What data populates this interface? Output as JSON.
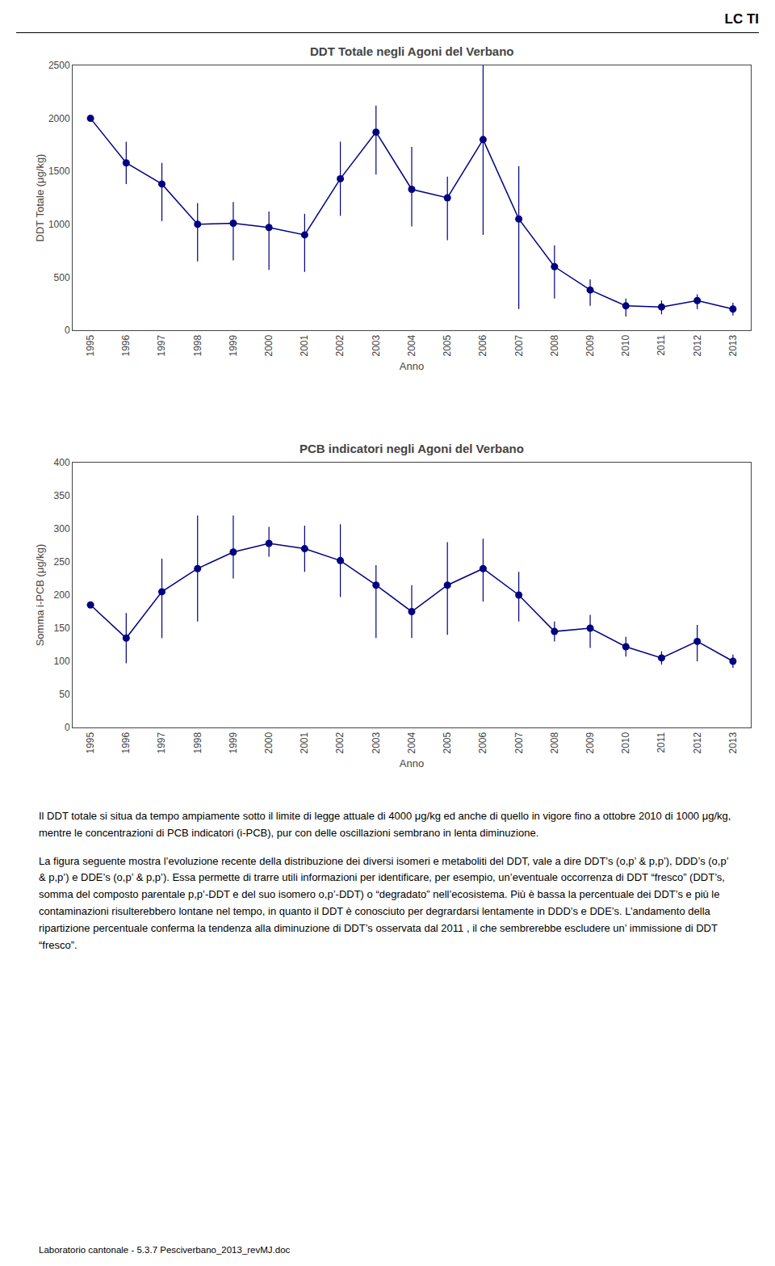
{
  "header": "LC TI",
  "chart_data": [
    {
      "type": "line",
      "title": "DDT Totale negli Agoni del Verbano",
      "xlabel": "Anno",
      "ylabel": "DDT Totale (μg/kg)",
      "x": [
        1995,
        1996,
        1997,
        1998,
        1999,
        2000,
        2001,
        2002,
        2003,
        2004,
        2005,
        2006,
        2007,
        2008,
        2009,
        2010,
        2011,
        2012,
        2013
      ],
      "values": [
        2000,
        1580,
        1380,
        1000,
        1010,
        970,
        900,
        1430,
        1870,
        1330,
        1250,
        1800,
        1050,
        600,
        380,
        230,
        220,
        280,
        200
      ],
      "error_low": [
        0,
        200,
        350,
        350,
        350,
        400,
        350,
        350,
        400,
        350,
        400,
        900,
        850,
        300,
        150,
        100,
        70,
        80,
        60
      ],
      "error_high": [
        0,
        200,
        200,
        200,
        200,
        150,
        200,
        350,
        250,
        400,
        200,
        700,
        500,
        200,
        100,
        70,
        60,
        60,
        60
      ],
      "color": "#000080",
      "marker": "circle",
      "line_style": "solid",
      "xlim": [
        1994.5,
        2013.5
      ],
      "xticks": [
        1995,
        1996,
        1997,
        1998,
        1999,
        2000,
        2001,
        2002,
        2003,
        2004,
        2005,
        2006,
        2007,
        2008,
        2009,
        2010,
        2011,
        2012,
        2013
      ],
      "ylim": [
        0,
        2500
      ],
      "yticks": [
        0,
        500,
        1000,
        1500,
        2000,
        2500
      ],
      "grid": false
    },
    {
      "type": "line",
      "title": "PCB indicatori negli Agoni del Verbano",
      "xlabel": "Anno",
      "ylabel": "Somma i-PCB (μg/kg)",
      "x": [
        1995,
        1996,
        1997,
        1998,
        1999,
        2000,
        2001,
        2002,
        2003,
        2004,
        2005,
        2006,
        2007,
        2008,
        2009,
        2010,
        2011,
        2012,
        2013
      ],
      "values": [
        185,
        135,
        205,
        240,
        265,
        278,
        270,
        252,
        215,
        175,
        215,
        240,
        200,
        145,
        150,
        122,
        105,
        130,
        100
      ],
      "error_low": [
        0,
        38,
        70,
        80,
        40,
        20,
        35,
        55,
        80,
        40,
        75,
        50,
        40,
        15,
        30,
        15,
        10,
        30,
        10
      ],
      "error_high": [
        0,
        38,
        50,
        80,
        55,
        25,
        35,
        55,
        30,
        40,
        65,
        45,
        35,
        15,
        20,
        15,
        10,
        25,
        10
      ],
      "color": "#000080",
      "marker": "circle",
      "line_style": "solid",
      "xlim": [
        1994.5,
        2013.5
      ],
      "xticks": [
        1995,
        1996,
        1997,
        1998,
        1999,
        2000,
        2001,
        2002,
        2003,
        2004,
        2005,
        2006,
        2007,
        2008,
        2009,
        2010,
        2011,
        2012,
        2013
      ],
      "ylim": [
        0,
        400
      ],
      "yticks": [
        0,
        50,
        100,
        150,
        200,
        250,
        300,
        350,
        400
      ],
      "grid": false
    }
  ],
  "text_blocks": [
    "Il DDT totale si situa da tempo ampiamente sotto il limite di legge attuale di 4000 μg/kg ed anche di quello in vigore fino a ottobre 2010 di 1000 μg/kg, mentre le concentrazioni di PCB indicatori (i-PCB), pur con delle oscillazioni sembrano in lenta diminuzione.",
    "La figura seguente mostra l’evoluzione recente della distribuzione dei diversi isomeri e metaboliti del DDT, vale a dire DDT’s (o,p’ & p,p’), DDD’s (o,p’ & p,p’) e DDE’s (o,p’ & p,p’). Essa permette di trarre utili informazioni per identificare, per esempio, un’eventuale occorrenza di DDT “fresco” (DDT’s, somma del composto parentale p,p’-DDT e del suo isomero o,p’-DDT) o “degradato” nell’ecosistema. Più è bassa la percentuale dei DDT’s e più le contaminazioni risulterebbero lontane nel tempo, in quanto il DDT è conosciuto per degrardarsi lentamente in DDD’s e DDE’s. L’andamento della ripartizione percentuale conferma la tendenza alla diminuzione di DDT’s osservata dal 2011 , il che sembrerebbe escludere un’ immissione di DDT “fresco”."
  ],
  "footer": "Laboratorio cantonale - 5.3.7 Pesciverbano_2013_revMJ.doc"
}
